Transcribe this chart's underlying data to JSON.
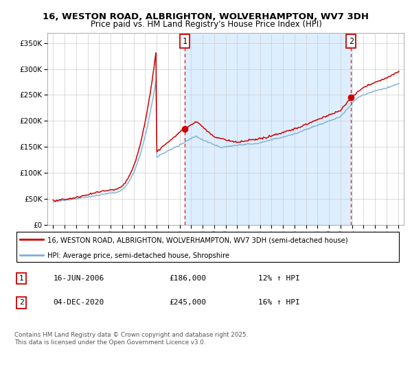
{
  "title": "16, WESTON ROAD, ALBRIGHTON, WOLVERHAMPTON, WV7 3DH",
  "subtitle": "Price paid vs. HM Land Registry's House Price Index (HPI)",
  "property_label": "16, WESTON ROAD, ALBRIGHTON, WOLVERHAMPTON, WV7 3DH (semi-detached house)",
  "hpi_label": "HPI: Average price, semi-detached house, Shropshire",
  "property_color": "#cc0000",
  "hpi_color": "#7bafd4",
  "shade_color": "#ddeeff",
  "annotation1_date": "16-JUN-2006",
  "annotation1_price": "£186,000",
  "annotation1_hpi": "12% ↑ HPI",
  "annotation2_date": "04-DEC-2020",
  "annotation2_price": "£245,000",
  "annotation2_hpi": "16% ↑ HPI",
  "vline1_x": 2006.46,
  "vline2_x": 2020.92,
  "footer": "Contains HM Land Registry data © Crown copyright and database right 2025.\nThis data is licensed under the Open Government Licence v3.0.",
  "ylim": [
    0,
    370000
  ],
  "xlim": [
    1994.5,
    2025.5
  ],
  "yticks": [
    0,
    50000,
    100000,
    150000,
    200000,
    250000,
    300000,
    350000
  ]
}
